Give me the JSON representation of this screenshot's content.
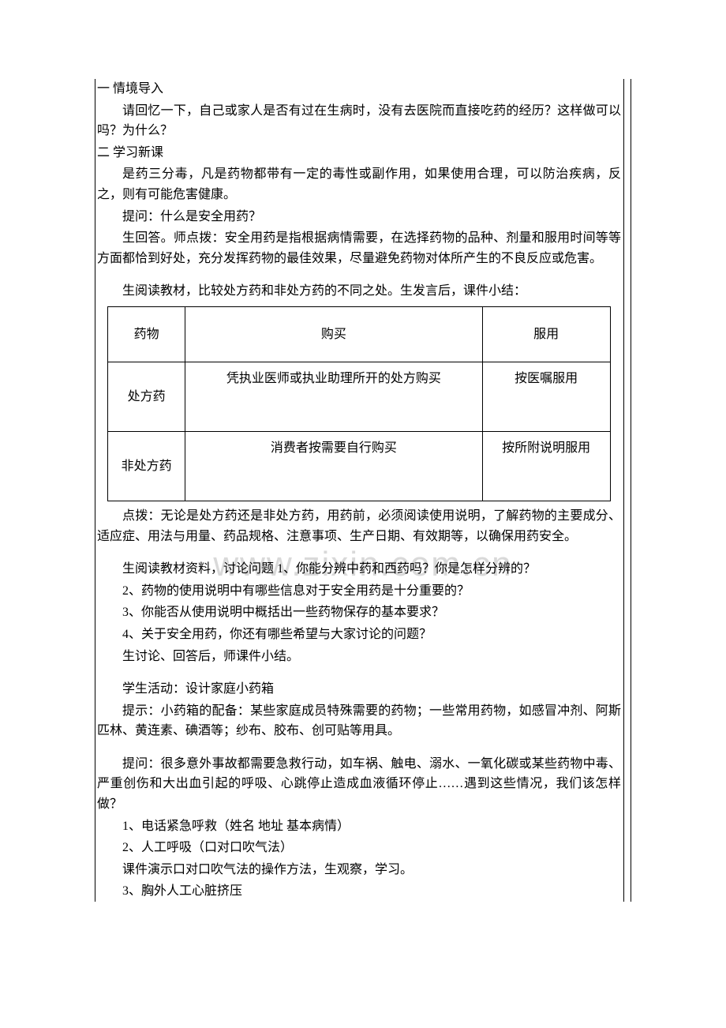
{
  "watermark": "www.zixin.com.cn",
  "section1": {
    "title": "一  情境导入",
    "p1": "请回忆一下，自己或家人是否有过在生病时，没有去医院而直接吃药的经历？这样做可以吗？为什么？"
  },
  "section2": {
    "title": "二  学习新课",
    "p1": "是药三分毒，凡是药物都带有一定的毒性或副作用，如果使用合理，可以防治疾病，反之，则有可能危害健康。",
    "p2": "提问：什么是安全用药？",
    "p3": "生回答。师点拨：安全用药是指根据病情需要，在选择药物的品种、剂量和服用时间等等方面都恰到好处，充分发挥药物的最佳效果，尽量避免药物对体所产生的不良反应或危害。",
    "p4": "生阅读教材，比较处方药和非处方药的不同之处。生发言后，课件小结："
  },
  "table": {
    "headers": [
      "药物",
      "购买",
      "服用"
    ],
    "rows": [
      [
        "处方药",
        "凭执业医师或执业助理所开的处方购买",
        "按医嘱服用"
      ],
      [
        "非处方药",
        "消费者按需要自行购买",
        "按所附说明服用"
      ]
    ]
  },
  "section3": {
    "p1": "点拨：无论是处方药还是非处方药，用药前，必须阅读使用说明，了解药物的主要成分、适应症、用法与用量、药品规格、注意事项、生产日期、有效期等，以确保用药安全。",
    "p2": "生阅读教材资料，讨论问题 1、你能分辨中药和西药吗？你是怎样分辨的？",
    "q2": "2、药物的使用说明中有哪些信息对于安全用药是十分重要的？",
    "q3": "3、你能否从使用说明中概括出一些药物保存的基本要求？",
    "q4": "4、关于安全用药，你还有哪些希望与大家讨论的问题？",
    "p3": "生讨论、回答后，师课件小结。"
  },
  "section4": {
    "p1": "学生活动：设计家庭小药箱",
    "p2": "提示：小药箱的配备：某些家庭成员特殊需要的药物；一些常用药物，如感冒冲剂、阿斯匹林、黄连素、碘酒等；纱布、胶布、创可贴等用具。"
  },
  "section5": {
    "p1": "提问：很多意外事故都需要急救行动，如车祸、触电、溺水、一氧化碳或某些药物中毒、严重创伤和大出血引起的呼吸、心跳停止造成血液循环停止……遇到这些情况，我们该怎样做？",
    "i1": "1、电话紧急呼救（姓名   地址    基本病情）",
    "i2": "2、人工呼吸（口对口吹气法）",
    "p2": "课件演示口对口吹气法的操作方法，生观察，学习。",
    "i3": "3、胸外人工心脏挤压"
  }
}
